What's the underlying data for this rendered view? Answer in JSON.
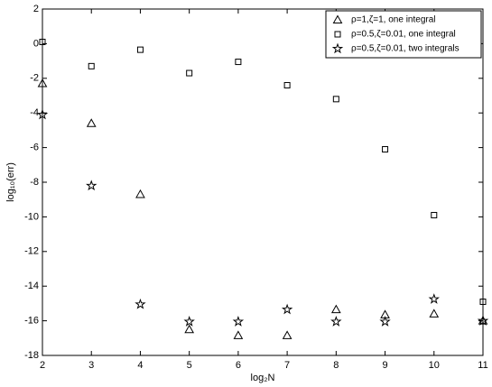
{
  "chart_data": {
    "type": "scatter",
    "x_label": "log₂N",
    "y_label": "log₁₀(err)",
    "x": [
      2,
      3,
      4,
      5,
      6,
      7,
      8,
      9,
      10,
      11
    ],
    "series": [
      {
        "name": "ρ=1,ζ=1, one integral",
        "color": "#000000",
        "marker": "triangle",
        "values": [
          -2.3,
          -4.6,
          -8.7,
          -16.5,
          -16.85,
          -16.85,
          -15.35,
          -15.65,
          -15.6,
          -16.0
        ]
      },
      {
        "name": "ρ=0.5,ζ=0.01, one integral",
        "color": "#000000",
        "marker": "square",
        "values": [
          0.1,
          -1.3,
          -0.35,
          -1.7,
          -1.05,
          -2.4,
          -3.2,
          -6.1,
          -9.9,
          -14.9
        ]
      },
      {
        "name": "ρ=0.5,ζ=0.01, two integrals",
        "color": "#000000",
        "marker": "star",
        "values": [
          -4.1,
          -8.2,
          -15.05,
          -16.05,
          -16.05,
          -15.35,
          -16.05,
          -16.05,
          -14.75,
          -16.0
        ]
      }
    ],
    "xlim": [
      2,
      11
    ],
    "ylim": [
      -18,
      2
    ],
    "xticks": [
      2,
      3,
      4,
      5,
      6,
      7,
      8,
      9,
      10,
      11
    ],
    "yticks": [
      2,
      0,
      -2,
      -4,
      -6,
      -8,
      -10,
      -12,
      -14,
      -16,
      -18
    ],
    "grid": false,
    "legend": "top-right"
  }
}
